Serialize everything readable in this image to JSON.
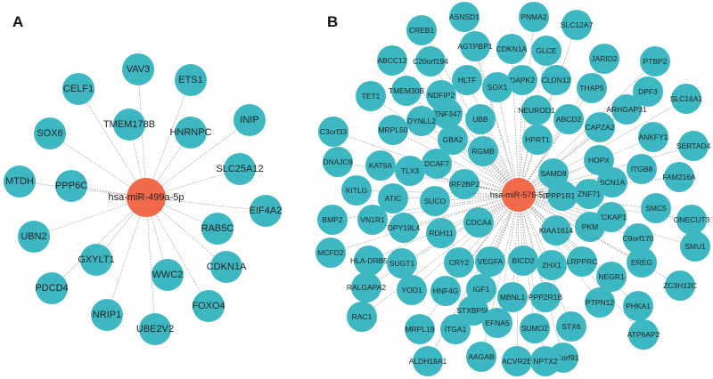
{
  "panels": [
    {
      "label": "A",
      "hub": "hsa-miR-499a-5p",
      "targets": [
        "VAV3",
        "ETS1",
        "CELF1",
        "TMEM178B",
        "HNRNPC",
        "INIP",
        "SOX6",
        "MTDH",
        "PPP6C",
        "SLC25A12",
        "EIF4A2",
        "UBN2",
        "RAB5C",
        "GXYLT1",
        "WWC2",
        "CDKN1A",
        "PDCD4",
        "FOXO4",
        "NRIP1",
        "UBE2V2"
      ]
    },
    {
      "label": "B",
      "hub": "hsa-miR-576-5p",
      "targets": [
        "ASNSD1",
        "PNMA2",
        "CREB1",
        "SLC12A7",
        "AGTPBP1",
        "GLCE",
        "C20orf194",
        "CDKN1A",
        "ABCC12",
        "JARID2",
        "PTBP2",
        "HLTF",
        "DAPK2",
        "CLDN12",
        "SOX1",
        "TET1",
        "NDFIP2",
        "TMEM30B",
        "THAP5",
        "DPF3",
        "SLC16A1",
        "ABCD2",
        "NEUROD1",
        "ZNF347",
        "UBB",
        "ARHGAP31",
        "C3orf33",
        "MRPL50",
        "DYNLL2",
        "CAPZA2",
        "ANKFY1",
        "SERTAD4",
        "GBA2",
        "HPRT1",
        "DNAJC8",
        "RGMB",
        "KAT6A",
        "DCAF7",
        "TLX3",
        "SAMD8",
        "HOPX",
        "ITGB8",
        "SCN1A",
        "FAM216A",
        "KITLG",
        "IRF2BP2",
        "ATIC",
        "SUCO",
        "PPP1R11",
        "ZNF71",
        "SMC5",
        "BMP2",
        "VN1R1",
        "CDCA4",
        "NCKAP1",
        "ONECUT3",
        "RDH11",
        "DPY19L4",
        "PKM",
        "KIAA1614",
        "C9orf170",
        "SMU1",
        "MCFD2",
        "HLA-DRB5",
        "SUGT1",
        "CRY2",
        "VEGFA",
        "BICD2",
        "ZHX1",
        "LRPPRC",
        "EREG",
        "NEGR1",
        "RALGAPA2",
        "IGF1",
        "YOD1",
        "HNF4G",
        "MBNL1",
        "PPP2R1B",
        "ZC3H12C",
        "PTPN12",
        "STXBP5L",
        "PHKA1",
        "RAC1",
        "MRPL19",
        "ITGA1",
        "EFNA5",
        "SUMO2",
        "STX6",
        "ATP6AP2",
        "C21orf91",
        "ALDH18A1",
        "AAGAB",
        "ACVR2B",
        "NPTX2"
      ]
    }
  ],
  "colors": {
    "hub": "#f26a4b",
    "target": "#3db8c3",
    "edge": "#9a9a9a"
  }
}
